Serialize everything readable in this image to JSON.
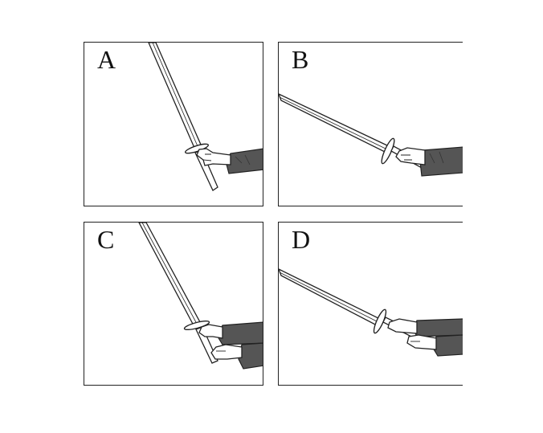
{
  "panels": [
    {
      "label": "A"
    },
    {
      "label": "B"
    },
    {
      "label": "C"
    },
    {
      "label": "D"
    }
  ]
}
